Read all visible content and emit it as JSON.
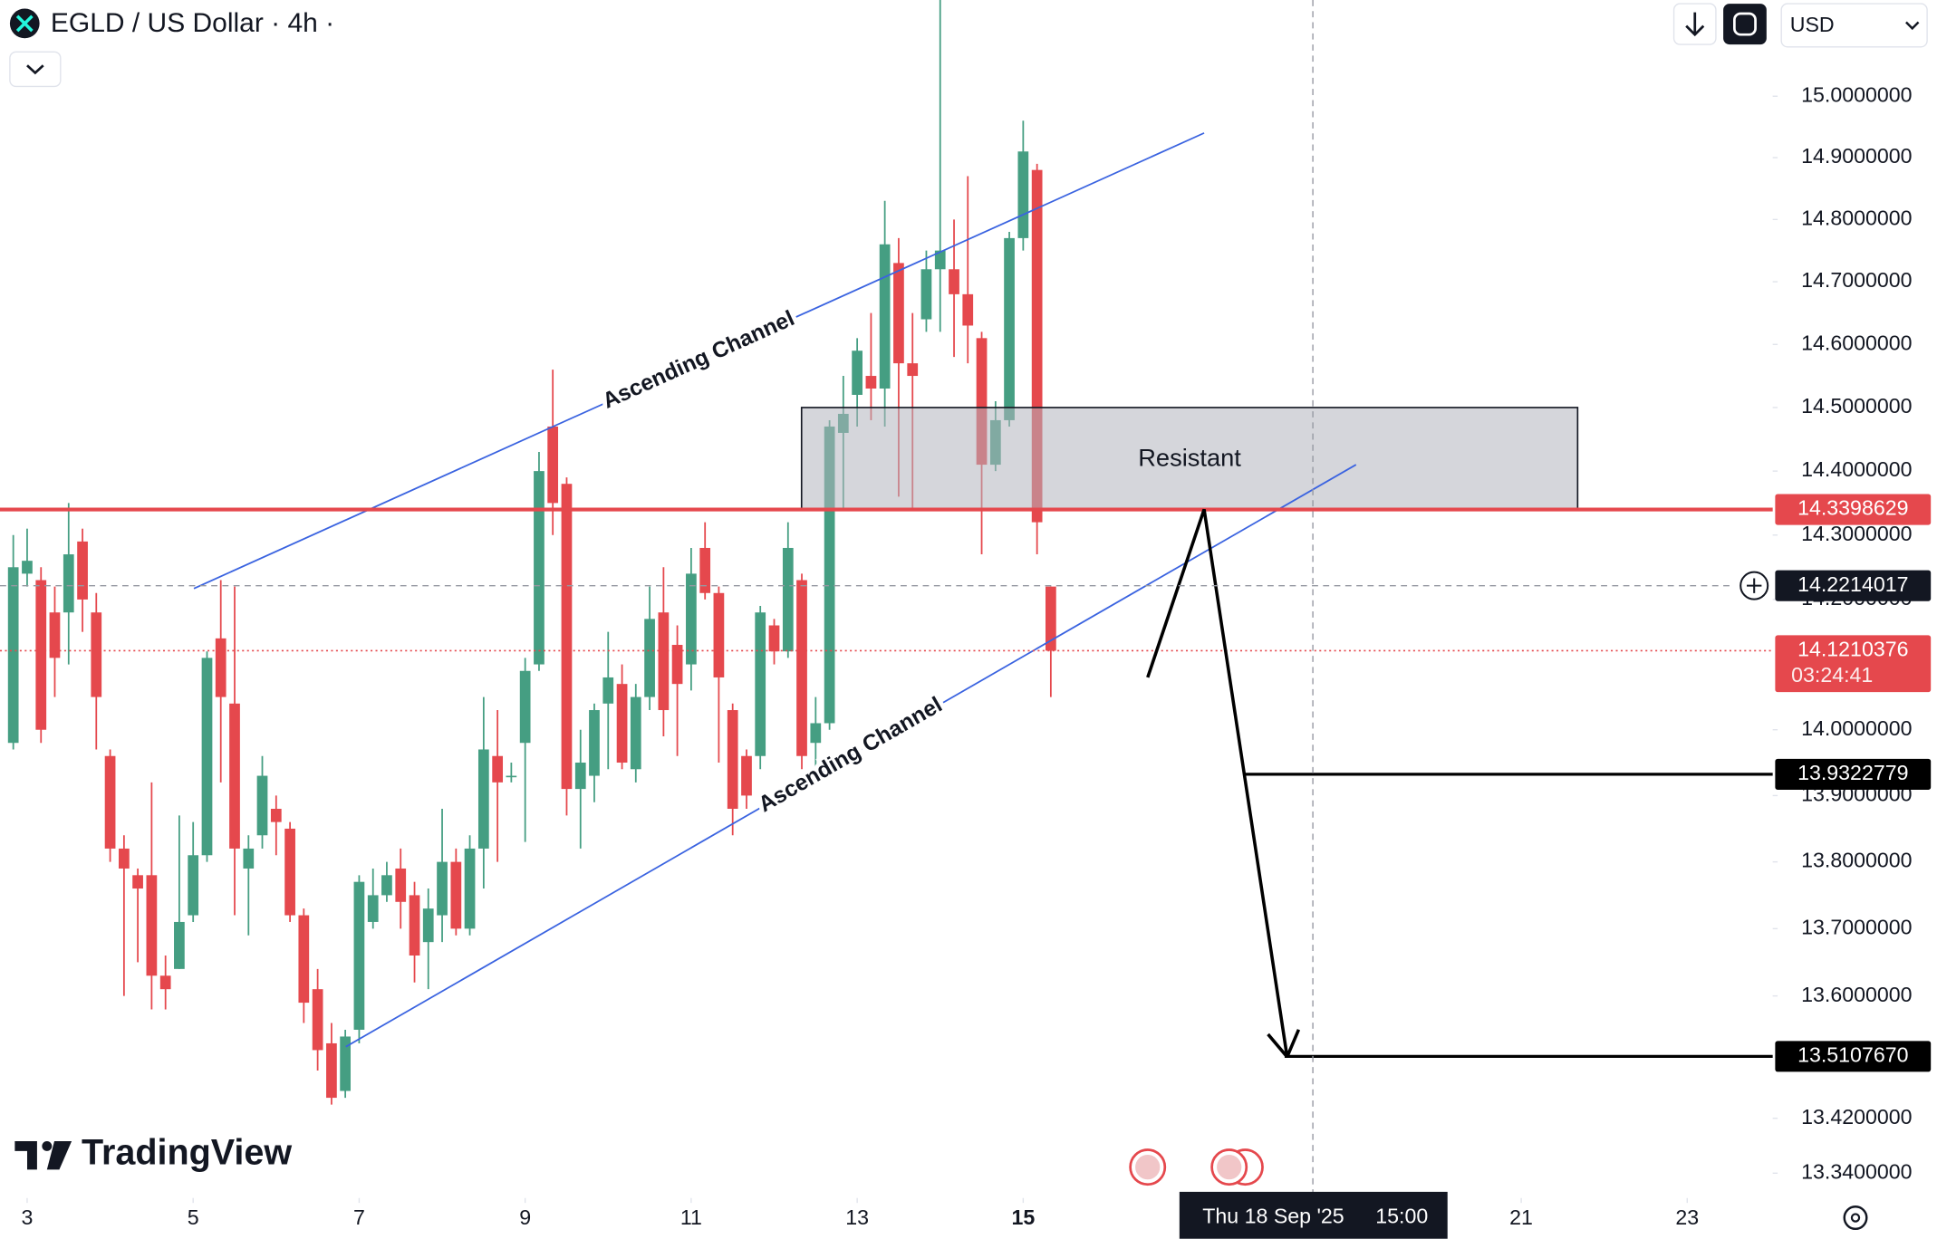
{
  "ui": {
    "currency": "USD",
    "brand": "TradingView"
  },
  "chart_data": {
    "type": "candlestick",
    "title": "EGLD / US Dollar · 4h ·",
    "log_scale": true,
    "grid": false,
    "up_color": "#459e82",
    "down_color": "#e5484d",
    "x": [
      2.833,
      3,
      3.167,
      3.333,
      3.5,
      3.667,
      3.833,
      4,
      4.167,
      4.333,
      4.5,
      4.667,
      4.833,
      5,
      5.167,
      5.333,
      5.5,
      5.667,
      5.833,
      6,
      6.167,
      6.333,
      6.5,
      6.667,
      6.833,
      7,
      7.167,
      7.333,
      7.5,
      7.667,
      7.833,
      8,
      8.167,
      8.333,
      8.5,
      8.667,
      8.833,
      9,
      9.167,
      9.333,
      9.5,
      9.667,
      9.833,
      10,
      10.167,
      10.333,
      10.5,
      10.667,
      10.833,
      11,
      11.167,
      11.333,
      11.5,
      11.667,
      11.833,
      12,
      12.167,
      12.333,
      12.5,
      12.667,
      12.833,
      13,
      13.167,
      13.333,
      13.5,
      13.667,
      13.833,
      14,
      14.167,
      14.333,
      14.5,
      14.667,
      14.833,
      15,
      15.167,
      15.333
    ],
    "open": [
      13.98,
      14.24,
      14.23,
      14.18,
      14.18,
      14.29,
      14.18,
      13.96,
      13.82,
      13.78,
      13.78,
      13.63,
      13.64,
      13.72,
      13.81,
      14.14,
      14.04,
      13.79,
      13.84,
      13.88,
      13.85,
      13.72,
      13.61,
      13.53,
      13.46,
      13.55,
      13.71,
      13.75,
      13.79,
      13.75,
      13.68,
      13.72,
      13.8,
      13.7,
      13.82,
      13.96,
      13.93,
      13.98,
      14.1,
      14.47,
      14.38,
      13.91,
      13.93,
      14.04,
      14.07,
      13.94,
      14.05,
      14.18,
      14.13,
      14.1,
      14.28,
      14.21,
      14.03,
      13.96,
      13.96,
      14.16,
      14.12,
      14.23,
      13.98,
      14.01,
      14.46,
      14.52,
      14.55,
      14.53,
      14.73,
      14.57,
      14.64,
      14.72,
      14.72,
      14.68,
      14.61,
      14.41,
      14.48,
      14.77,
      14.88,
      14.22
    ],
    "high": [
      14.3,
      14.31,
      14.25,
      14.22,
      14.35,
      14.31,
      14.21,
      13.97,
      13.84,
      13.79,
      13.92,
      13.66,
      13.87,
      13.86,
      14.12,
      14.23,
      14.22,
      13.84,
      13.96,
      13.9,
      13.86,
      13.73,
      13.64,
      13.56,
      13.55,
      13.78,
      13.79,
      13.8,
      13.82,
      13.77,
      13.76,
      13.88,
      13.82,
      13.84,
      14.05,
      14.03,
      13.95,
      14.11,
      14.43,
      14.56,
      14.39,
      14.0,
      14.04,
      14.15,
      14.1,
      14.07,
      14.22,
      14.25,
      14.16,
      14.28,
      14.32,
      14.22,
      14.04,
      13.97,
      14.19,
      14.17,
      14.32,
      14.24,
      14.05,
      14.48,
      14.55,
      14.61,
      14.65,
      14.83,
      14.77,
      14.65,
      14.75,
      15.16,
      14.8,
      14.87,
      14.62,
      14.51,
      14.78,
      14.96,
      14.89,
      14.22
    ],
    "low": [
      13.97,
      14.22,
      13.98,
      14.05,
      14.1,
      14.15,
      13.97,
      13.8,
      13.6,
      13.65,
      13.58,
      13.58,
      13.64,
      13.71,
      13.8,
      13.92,
      13.72,
      13.69,
      13.82,
      13.81,
      13.71,
      13.56,
      13.49,
      13.44,
      13.45,
      13.53,
      13.7,
      13.74,
      13.7,
      13.62,
      13.61,
      13.68,
      13.69,
      13.69,
      13.76,
      13.8,
      13.92,
      13.83,
      14.09,
      14.3,
      13.87,
      13.82,
      13.89,
      13.94,
      13.94,
      13.92,
      14.03,
      13.99,
      13.96,
      14.06,
      14.2,
      13.95,
      13.84,
      13.88,
      13.94,
      14.1,
      14.11,
      13.94,
      13.92,
      14.0,
      14.34,
      14.47,
      14.48,
      14.47,
      14.36,
      14.34,
      14.62,
      14.62,
      14.58,
      14.57,
      14.27,
      14.4,
      14.47,
      14.75,
      14.27,
      14.05
    ],
    "close": [
      14.25,
      14.26,
      14.0,
      14.11,
      14.27,
      14.2,
      14.05,
      13.82,
      13.79,
      13.76,
      13.63,
      13.61,
      13.71,
      13.81,
      14.11,
      14.05,
      13.82,
      13.82,
      13.93,
      13.86,
      13.72,
      13.59,
      13.52,
      13.45,
      13.54,
      13.77,
      13.75,
      13.78,
      13.74,
      13.66,
      13.73,
      13.8,
      13.7,
      13.82,
      13.97,
      13.92,
      13.93,
      14.09,
      14.4,
      14.35,
      13.91,
      13.95,
      14.03,
      14.08,
      13.95,
      14.05,
      14.17,
      14.03,
      14.07,
      14.24,
      14.21,
      14.08,
      13.88,
      13.9,
      14.18,
      14.12,
      14.28,
      13.96,
      14.01,
      14.47,
      14.49,
      14.59,
      14.53,
      14.76,
      14.57,
      14.55,
      14.72,
      14.75,
      14.68,
      14.63,
      14.41,
      14.48,
      14.77,
      14.91,
      14.32,
      14.1210376
    ],
    "xlim": [
      2.673,
      24.03
    ],
    "xticks": [
      3,
      5,
      7,
      9,
      11,
      13,
      15,
      21,
      23
    ],
    "ylim": [
      13.304,
      15.158
    ],
    "yticks": [
      {
        "value": 15,
        "label": "15.0000000"
      },
      {
        "value": 14.9,
        "label": "14.9000000"
      },
      {
        "value": 14.8,
        "label": "14.8000000"
      },
      {
        "value": 14.7,
        "label": "14.7000000"
      },
      {
        "value": 14.6,
        "label": "14.6000000"
      },
      {
        "value": 14.5,
        "label": "14.5000000"
      },
      {
        "value": 14.4,
        "label": "14.4000000"
      },
      {
        "value": 14.3,
        "label": "14.3000000"
      },
      {
        "value": 14.2,
        "label": "14.2000000"
      },
      {
        "value": 14,
        "label": "14.0000000"
      },
      {
        "value": 13.9,
        "label": "13.9000000"
      },
      {
        "value": 13.8,
        "label": "13.8000000"
      },
      {
        "value": 13.7,
        "label": "13.7000000"
      },
      {
        "value": 13.6,
        "label": "13.6000000"
      },
      {
        "value": 13.42,
        "label": "13.4200000"
      },
      {
        "value": 13.34,
        "label": "13.3400000"
      }
    ],
    "price_lines": [
      {
        "value": 14.3398629,
        "color": "#e5484d",
        "style": "solid"
      },
      {
        "value": 14.1210376,
        "color": "#e5484d",
        "style": "dotted",
        "countdown": "03:24:41"
      },
      {
        "value": 13.9322779,
        "color": "#000000",
        "style": "solid",
        "start": 17.67
      },
      {
        "value": 13.510767,
        "label": "13.5107670",
        "color": "#000000",
        "style": "solid",
        "start": 18.15
      }
    ],
    "crosshair": {
      "x": 18.49,
      "y": 14.2214017,
      "date_label": "Thu 18 Sep '25",
      "time_label": "15:00"
    },
    "channels": [
      {
        "label": "Ascending Channel",
        "color": "#3a63e0",
        "x": [
          5.009,
          17.18
        ],
        "y": [
          14.217,
          14.94
        ]
      },
      {
        "label": "Ascending Channel",
        "color": "#3a63e0",
        "x": [
          6.84,
          19.01
        ],
        "y": [
          13.525,
          14.41
        ]
      }
    ],
    "zone": {
      "label": "Resistant",
      "x": [
        12.33,
        21.68
      ],
      "y": [
        14.34,
        14.5
      ]
    },
    "arrow": {
      "x": [
        16.5,
        17.18,
        18.18
      ],
      "y": [
        14.08,
        14.34,
        13.51
      ]
    }
  }
}
